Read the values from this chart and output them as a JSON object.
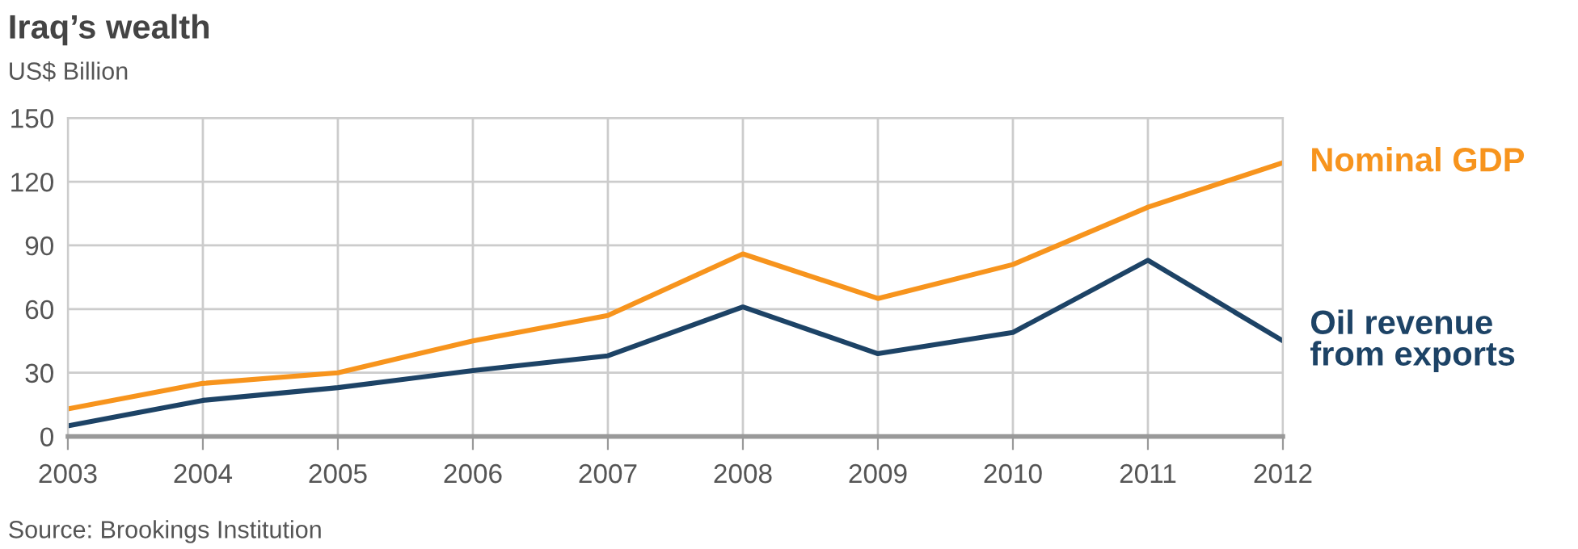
{
  "chart_data": {
    "type": "line",
    "title": "Iraq’s wealth",
    "subtitle": "US$ Billion",
    "x": [
      2003,
      2004,
      2005,
      2006,
      2007,
      2008,
      2009,
      2010,
      2011,
      2012
    ],
    "series": [
      {
        "name": "Nominal GDP",
        "color": "#f7941d",
        "values": [
          13,
          25,
          30,
          45,
          57,
          86,
          65,
          81,
          108,
          129
        ]
      },
      {
        "name": "Oil revenue\nfrom exports",
        "color": "#1d4366",
        "values": [
          5,
          17,
          23,
          31,
          38,
          61,
          39,
          49,
          83,
          45
        ]
      }
    ],
    "xlim": [
      2003,
      2012
    ],
    "xticks": [
      2003,
      2004,
      2005,
      2006,
      2007,
      2008,
      2009,
      2010,
      2011,
      2012
    ],
    "ylim": [
      0,
      150
    ],
    "yticks": [
      0,
      30,
      60,
      90,
      120,
      150
    ],
    "grid": true,
    "legend": false,
    "marker": "none",
    "line_style": "solid",
    "annotations": [
      "Source: Brookings Institution"
    ]
  }
}
